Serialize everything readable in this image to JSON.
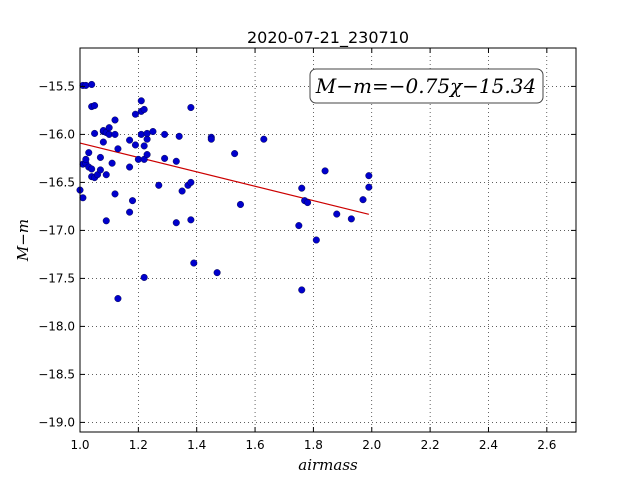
{
  "chart_data": {
    "type": "scatter",
    "title": "2020-07-21_230710",
    "xlabel": "airmass",
    "ylabel": "M−m",
    "xlim": [
      1.0,
      2.7
    ],
    "ylim": [
      -19.1,
      -15.1
    ],
    "y_inverted": true,
    "grid": true,
    "grid_style": "dotted",
    "x_ticks": [
      "1.0",
      "1.2",
      "1.4",
      "1.6",
      "1.8",
      "2.0",
      "2.2",
      "2.4",
      "2.6"
    ],
    "y_ticks": [
      "−15.5",
      "−16.0",
      "−16.5",
      "−17.0",
      "−17.5",
      "−18.0",
      "−18.5",
      "−19.0"
    ],
    "annotation": "M−m=−0.75χ−15.34",
    "marker_color": "#0000cc",
    "fit_color": "#cc0000",
    "fit": {
      "slope": -0.75,
      "intercept": -15.34,
      "x_range": [
        1.0,
        1.99
      ]
    },
    "points": [
      [
        1.01,
        -15.49
      ],
      [
        1.02,
        -15.49
      ],
      [
        1.04,
        -15.48
      ],
      [
        1.04,
        -15.71
      ],
      [
        1.05,
        -15.7
      ],
      [
        1.0,
        -16.58
      ],
      [
        1.01,
        -16.66
      ],
      [
        1.01,
        -16.31
      ],
      [
        1.02,
        -16.3
      ],
      [
        1.02,
        -16.26
      ],
      [
        1.03,
        -16.19
      ],
      [
        1.03,
        -16.34
      ],
      [
        1.04,
        -16.44
      ],
      [
        1.04,
        -16.36
      ],
      [
        1.05,
        -16.45
      ],
      [
        1.05,
        -15.99
      ],
      [
        1.06,
        -16.42
      ],
      [
        1.07,
        -16.24
      ],
      [
        1.07,
        -16.37
      ],
      [
        1.08,
        -16.08
      ],
      [
        1.08,
        -15.97
      ],
      [
        1.08,
        -15.96
      ],
      [
        1.09,
        -15.98
      ],
      [
        1.09,
        -16.42
      ],
      [
        1.1,
        -15.93
      ],
      [
        1.1,
        -16.0
      ],
      [
        1.11,
        -16.3
      ],
      [
        1.12,
        -16.0
      ],
      [
        1.12,
        -15.85
      ],
      [
        1.13,
        -16.15
      ],
      [
        1.12,
        -16.62
      ],
      [
        1.09,
        -16.9
      ],
      [
        1.13,
        -17.71
      ],
      [
        1.17,
        -16.06
      ],
      [
        1.17,
        -16.34
      ],
      [
        1.17,
        -16.81
      ],
      [
        1.18,
        -16.69
      ],
      [
        1.19,
        -16.11
      ],
      [
        1.2,
        -16.26
      ],
      [
        1.19,
        -15.79
      ],
      [
        1.21,
        -15.76
      ],
      [
        1.21,
        -15.65
      ],
      [
        1.22,
        -15.74
      ],
      [
        1.21,
        -16.0
      ],
      [
        1.22,
        -16.12
      ],
      [
        1.22,
        -16.26
      ],
      [
        1.23,
        -16.21
      ],
      [
        1.23,
        -16.05
      ],
      [
        1.23,
        -15.99
      ],
      [
        1.22,
        -17.49
      ],
      [
        1.25,
        -15.97
      ],
      [
        1.27,
        -16.53
      ],
      [
        1.29,
        -16.0
      ],
      [
        1.29,
        -16.25
      ],
      [
        1.33,
        -16.28
      ],
      [
        1.34,
        -16.02
      ],
      [
        1.33,
        -16.92
      ],
      [
        1.35,
        -16.59
      ],
      [
        1.37,
        -16.53
      ],
      [
        1.38,
        -16.5
      ],
      [
        1.38,
        -15.72
      ],
      [
        1.38,
        -16.89
      ],
      [
        1.39,
        -17.34
      ],
      [
        1.45,
        -16.03
      ],
      [
        1.45,
        -16.05
      ],
      [
        1.47,
        -17.44
      ],
      [
        1.53,
        -16.2
      ],
      [
        1.55,
        -16.73
      ],
      [
        1.63,
        -16.05
      ],
      [
        1.75,
        -16.95
      ],
      [
        1.76,
        -16.56
      ],
      [
        1.77,
        -16.69
      ],
      [
        1.78,
        -16.71
      ],
      [
        1.76,
        -17.62
      ],
      [
        1.81,
        -17.1
      ],
      [
        1.84,
        -16.38
      ],
      [
        1.88,
        -16.83
      ],
      [
        1.93,
        -16.88
      ],
      [
        1.97,
        -16.68
      ],
      [
        1.99,
        -16.43
      ],
      [
        1.99,
        -16.55
      ]
    ]
  }
}
